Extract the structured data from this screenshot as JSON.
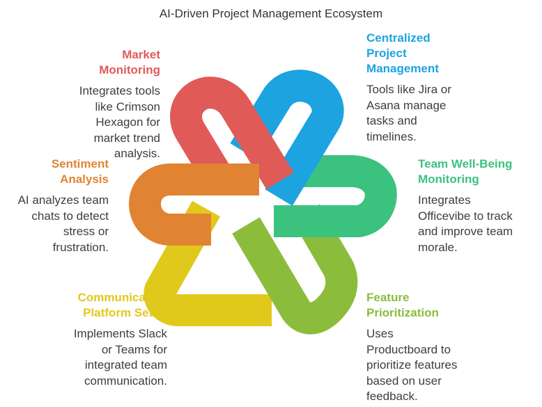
{
  "title": "AI-Driven Project Management Ecosystem",
  "colors": {
    "market": "#e05a58",
    "centralized": "#1ca3e0",
    "wellbeing": "#3cc27f",
    "feature": "#8cbc3c",
    "communication": "#e1c91b",
    "sentiment": "#e08433"
  },
  "sections": {
    "market": {
      "title": "Market\nMonitoring",
      "desc": "Integrates tools\nlike Crimson\nHexagon for\nmarket trend\nanalysis."
    },
    "sentiment": {
      "title": "Sentiment\nAnalysis",
      "desc": "AI analyzes team\nchats to detect\nstress or\nfrustration."
    },
    "communication": {
      "title": "Communication\nPlatform Setup",
      "desc": "Implements Slack\nor Teams for\nintegrated team\ncommunication."
    },
    "centralized": {
      "title": "Centralized\nProject\nManagement",
      "desc": "Tools like Jira or\nAsana manage\ntasks and\ntimelines."
    },
    "wellbeing": {
      "title": "Team Well-Being\nMonitoring",
      "desc": "Integrates\nOfficevibe to track\nand improve team\nmorale."
    },
    "feature": {
      "title": "Feature\nPrioritization",
      "desc": "Uses\nProductboard to\nprioritize features\nbased on user\nfeedback."
    }
  }
}
